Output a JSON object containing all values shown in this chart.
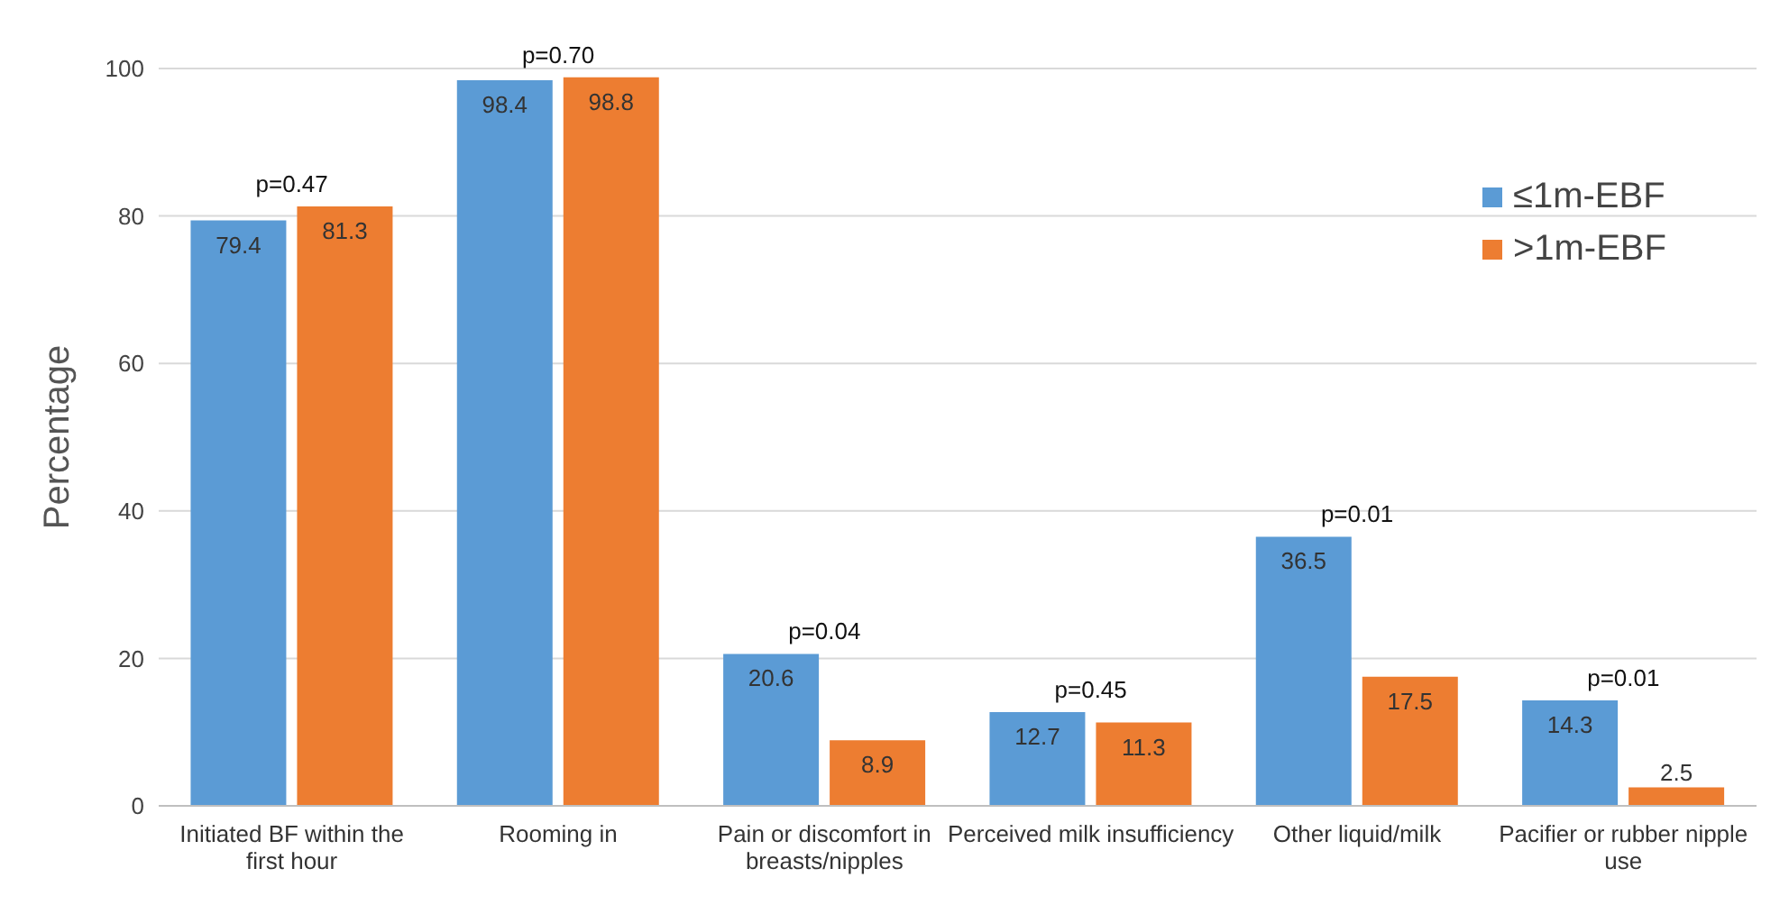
{
  "chart_data": {
    "type": "bar",
    "ylabel": "Percentage",
    "categories": [
      "Initiated BF within the first hour",
      "Rooming in",
      "Pain or discomfort in breasts/nipples",
      "Perceived milk insufficiency",
      "Other liquid/milk",
      "Pacifier or rubber nipple use"
    ],
    "series": [
      {
        "name": "≤1m-EBF",
        "color": "#5b9bd5",
        "values": [
          79.4,
          98.4,
          20.6,
          12.7,
          36.5,
          14.3
        ]
      },
      {
        "name": ">1m-EBF",
        "color": "#ed7d31",
        "values": [
          81.3,
          98.8,
          8.9,
          11.3,
          17.5,
          2.5
        ]
      }
    ],
    "annotations": [
      "p=0.47",
      "p=0.70",
      "p=0.04",
      "p=0.45",
      "p=0.01",
      "p=0.01"
    ],
    "ylim": [
      0,
      100
    ],
    "yticks": [
      0,
      20,
      40,
      60,
      80,
      100
    ],
    "grid": "y",
    "legend": "top right",
    "data_labels": true
  }
}
